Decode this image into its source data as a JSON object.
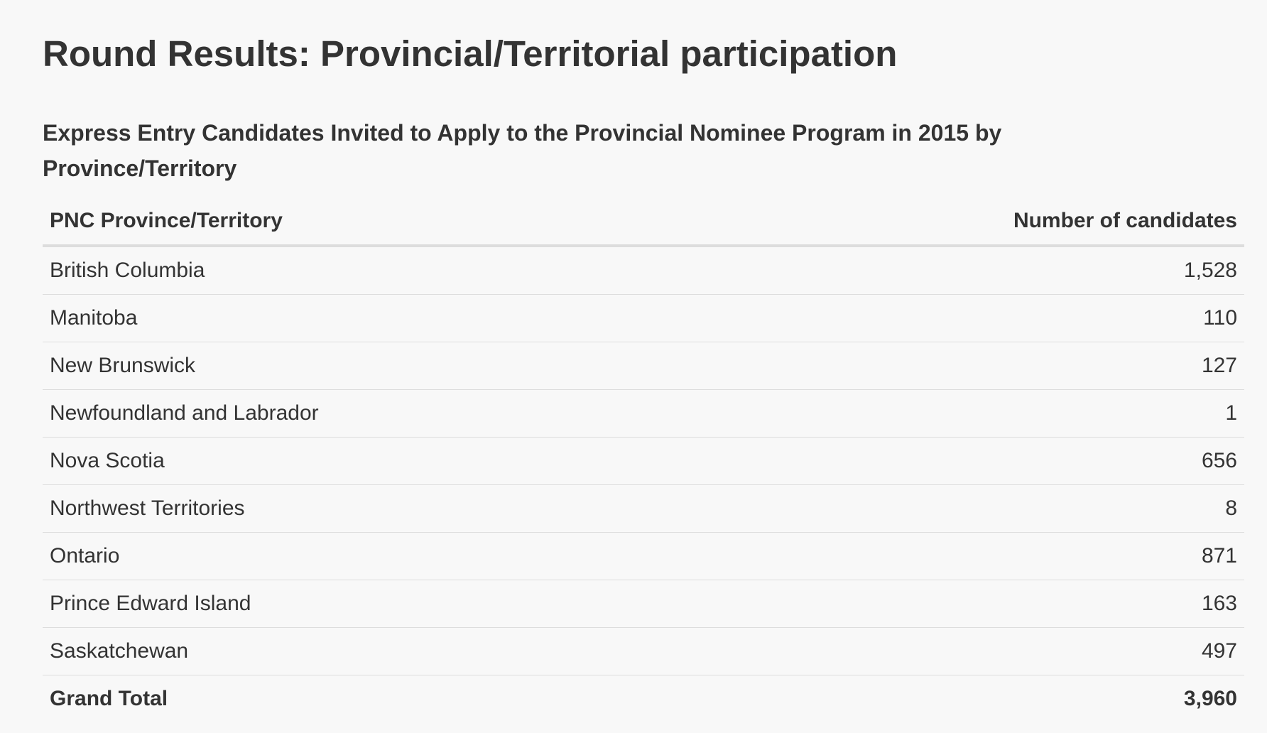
{
  "title": "Round Results: Provincial/Territorial participation",
  "caption": "Express Entry Candidates Invited to Apply to the Provincial Nominee Program in 2015 by Province/Territory",
  "table": {
    "headers": [
      "PNC Province/Territory",
      "Number of candidates"
    ],
    "rows": [
      {
        "province": "British Columbia",
        "count": "1,528"
      },
      {
        "province": "Manitoba",
        "count": "110"
      },
      {
        "province": "New Brunswick",
        "count": "127"
      },
      {
        "province": "Newfoundland and Labrador",
        "count": "1"
      },
      {
        "province": "Nova Scotia",
        "count": "656"
      },
      {
        "province": "Northwest Territories",
        "count": "8"
      },
      {
        "province": "Ontario",
        "count": "871"
      },
      {
        "province": "Prince Edward Island",
        "count": "163"
      },
      {
        "province": "Saskatchewan",
        "count": "497"
      }
    ],
    "total": {
      "label": "Grand Total",
      "count": "3,960"
    }
  }
}
